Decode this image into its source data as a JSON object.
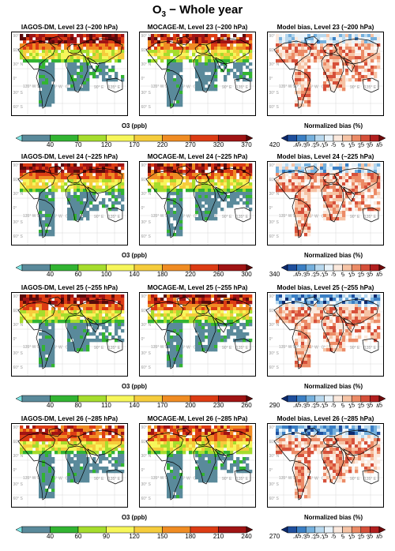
{
  "figure": {
    "title_main": "O",
    "title_sub": "3",
    "title_rest": " − Whole year"
  },
  "colors": {
    "scale": [
      "#7fe6e6",
      "#5a8a9b",
      "#32b432",
      "#a6dd2d",
      "#f6f65a",
      "#f5cc3c",
      "#f08c23",
      "#dc3c14",
      "#a01414",
      "#5a0a0a"
    ],
    "bias": [
      "#0e2a6e",
      "#1f4f9d",
      "#3b7fc4",
      "#75b0dd",
      "#b8d8ee",
      "#e9f3fa",
      "#fbe9dd",
      "#f6c3a5",
      "#ec8b66",
      "#d6503a",
      "#b21f1f",
      "#6e0a0a"
    ]
  },
  "chart_data": [
    {
      "type": "heatmap",
      "row": 1,
      "panels": [
        "IAGOS-DM, Level 23 (~200 hPa)",
        "MOCAGE-M, Level 23 (~200 hPa)",
        "Model bias, Level 23 (~200 hPa)"
      ],
      "colorbar_label": "O3 (ppb)",
      "ticks": [
        "40",
        "70",
        "120",
        "170",
        "220",
        "270",
        "320",
        "370",
        "420"
      ],
      "bias_label": "Normalized bias (%)",
      "bias_ticks": [
        "-45",
        "-35",
        "-25",
        "-15",
        "-5",
        "5",
        "15",
        "25",
        "35",
        "45"
      ]
    },
    {
      "type": "heatmap",
      "row": 2,
      "panels": [
        "IAGOS-DM, Level 24 (~225 hPa)",
        "MOCAGE-M, Level 24 (~225 hPa)",
        "Model bias, Level 24 (~225 hPa)"
      ],
      "colorbar_label": "O3 (ppb)",
      "ticks": [
        "40",
        "60",
        "100",
        "140",
        "180",
        "220",
        "260",
        "300",
        "340"
      ],
      "bias_label": "Normalized bias (%)",
      "bias_ticks": [
        "-45",
        "-35",
        "-25",
        "-15",
        "-5",
        "5",
        "15",
        "25",
        "35",
        "45"
      ]
    },
    {
      "type": "heatmap",
      "row": 3,
      "panels": [
        "IAGOS-DM, Level 25 (~255 hPa)",
        "MOCAGE-M, Level 25 (~255 hPa)",
        "Model bias, Level 25 (~255 hPa)"
      ],
      "colorbar_label": "O3 (ppb)",
      "ticks": [
        "40",
        "80",
        "110",
        "140",
        "170",
        "200",
        "230",
        "260",
        "290"
      ],
      "bias_label": "Normalized bias (%)",
      "bias_ticks": [
        "-45",
        "-35",
        "-25",
        "-15",
        "-5",
        "5",
        "15",
        "25",
        "35",
        "45"
      ]
    },
    {
      "type": "heatmap",
      "row": 4,
      "panels": [
        "IAGOS-DM, Level 26 (~285 hPa)",
        "MOCAGE-M, Level 26 (~285 hPa)",
        "Model bias, Level 26 (~285 hPa)"
      ],
      "colorbar_label": "O3 (ppb)",
      "ticks": [
        "40",
        "60",
        "90",
        "120",
        "150",
        "180",
        "210",
        "240",
        "270"
      ],
      "bias_label": "Normalized bias (%)",
      "bias_ticks": [
        "-45",
        "-35",
        "-25",
        "-15",
        "-5",
        "5",
        "15",
        "25",
        "35",
        "45"
      ]
    }
  ]
}
